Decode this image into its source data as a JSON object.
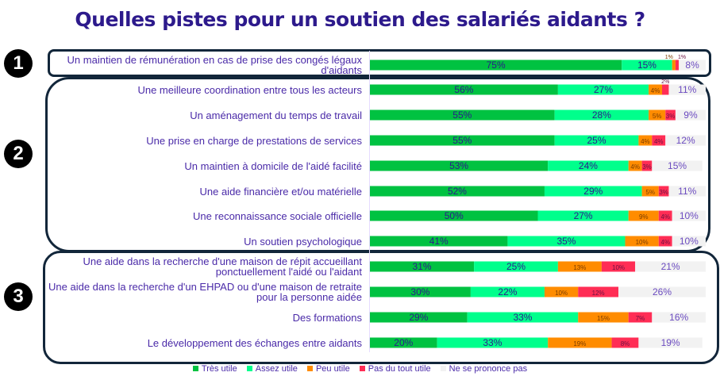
{
  "title": "Quelles pistes pour un soutien des salariés aidants ?",
  "groups": [
    {
      "number": "1"
    },
    {
      "number": "2"
    },
    {
      "number": "3"
    }
  ],
  "chart_data": {
    "type": "bar",
    "stacked": true,
    "orientation": "horizontal",
    "title": "Quelles pistes pour un soutien des salariés aidants ?",
    "legend_position": "bottom",
    "categories": [
      "Un maintien de rémunération en cas de prise des congés légaux d'aidants",
      "Une meilleure coordination entre tous les acteurs",
      "Un aménagement du temps de travail",
      "Une prise en charge de prestations de services",
      "Un maintien à domicile de l'aidé facilité",
      "Une aide financière et/ou matérielle",
      "Une reconnaissance sociale officielle",
      "Un soutien psychologique",
      "Une aide dans la recherche d'une maison de répit accueillant ponctuellement l'aidé ou l'aidant",
      "Une aide dans la recherche d'un EHPAD ou d'une maison de retraite pour la personne aidée",
      "Des formations",
      "Le développement des échanges entre aidants"
    ],
    "series": [
      {
        "name": "Très utile",
        "color": "#00c241",
        "values": [
          75,
          56,
          55,
          55,
          53,
          52,
          50,
          41,
          31,
          30,
          29,
          20
        ]
      },
      {
        "name": "Assez utile",
        "color": "#00ff8c",
        "values": [
          15,
          27,
          28,
          25,
          24,
          29,
          27,
          35,
          25,
          22,
          33,
          33
        ]
      },
      {
        "name": "Peu utile",
        "color": "#ff8c00",
        "values": [
          1,
          4,
          5,
          4,
          4,
          5,
          9,
          10,
          13,
          10,
          15,
          19
        ]
      },
      {
        "name": "Pas du tout utile",
        "color": "#ff2d55",
        "values": [
          1,
          2,
          3,
          4,
          3,
          3,
          4,
          4,
          10,
          12,
          7,
          8
        ]
      },
      {
        "name": "Ne se prononce pas",
        "color": "#f2f2f2",
        "values": [
          8,
          11,
          9,
          12,
          15,
          11,
          10,
          10,
          21,
          26,
          16,
          19
        ]
      }
    ],
    "xlim": [
      0,
      100
    ]
  }
}
